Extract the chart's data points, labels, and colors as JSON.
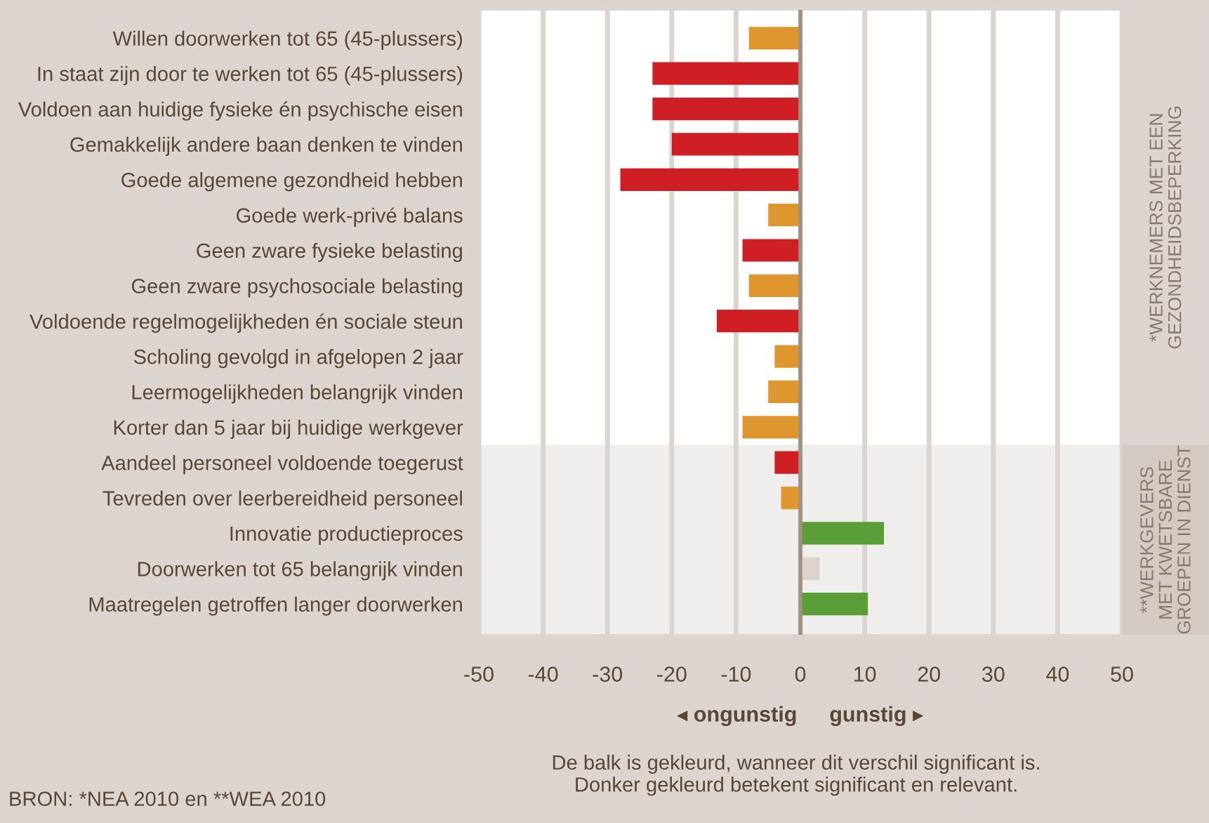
{
  "chart_data": {
    "type": "bar",
    "orientation": "horizontal",
    "categories": [
      "Willen doorwerken tot 65 (45-plussers)",
      "In staat zijn door te werken tot 65 (45-plussers)",
      "Voldoen aan huidige fysieke én psychische eisen",
      "Gemakkelijk andere baan denken te vinden",
      "Goede algemene gezondheid hebben",
      "Goede werk-privé balans",
      "Geen zware fysieke belasting",
      "Geen zware psychosociale belasting",
      "Voldoende regelmogelijkheden én sociale steun",
      "Scholing gevolgd in afgelopen 2 jaar",
      "Leermogelijkheden belangrijk vinden",
      "Korter dan 5 jaar bij huidige werkgever",
      "Aandeel personeel voldoende toegerust",
      "Tevreden over leerbereidheid personeel",
      "Innovatie productieproces",
      "Doorwerken tot 65 belangrijk vinden",
      "Maatregelen getroffen langer doorwerken"
    ],
    "values": [
      -8,
      -23,
      -23,
      -20,
      -28,
      -5,
      -9,
      -8,
      -13,
      -4,
      -5,
      -9,
      -4,
      -3,
      13,
      3,
      10.5
    ],
    "colors": [
      "#e0962f",
      "#cf1f25",
      "#cf1f25",
      "#cf1f25",
      "#cf1f25",
      "#e0962f",
      "#cf1f25",
      "#e0962f",
      "#cf1f25",
      "#e0962f",
      "#e0962f",
      "#e0962f",
      "#cf1f25",
      "#e0962f",
      "#5a9e38",
      "#dbd3cd",
      "#5a9e38"
    ],
    "xlim": [
      -50,
      50
    ],
    "xticks": [
      -50,
      -40,
      -30,
      -20,
      -10,
      0,
      10,
      20,
      30,
      40,
      50
    ],
    "grid": "x",
    "ref_lines": [
      {
        "axis": "x",
        "value": 0,
        "color": "#a09080"
      }
    ],
    "annotations": [
      "*WERKNEMERS MET EEN\nGEZONDHEIDSBEPERKING",
      "**WERKGEVERS\nMET KWETSBARE\nGROEPEN IN DIENST",
      "◂ ongunstig",
      "gunstig ▸",
      "De balk is gekleurd, wanneer dit verschil significant is.\nDonker gekleurd betekent significant en relevant.",
      "BRON: *NEA 2010 en **WEA 2010"
    ]
  }
}
